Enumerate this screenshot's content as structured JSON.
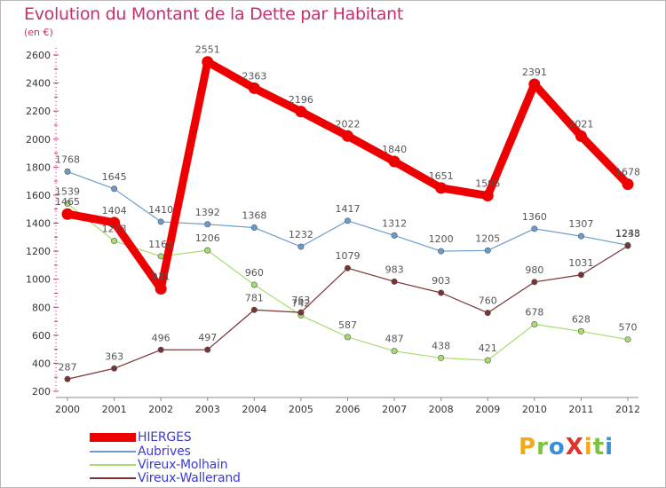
{
  "header": {
    "title": "Evolution du Montant de la Dette par Habitant",
    "unit": "(en €)"
  },
  "brand": {
    "text": "ProXiti",
    "letters": [
      {
        "ch": "P",
        "color": "#f2a81d"
      },
      {
        "ch": "r",
        "color": "#7cc142"
      },
      {
        "ch": "o",
        "color": "#3a8fd9"
      },
      {
        "ch": "X",
        "color": "#e4322b"
      },
      {
        "ch": "i",
        "color": "#f2a81d"
      },
      {
        "ch": "t",
        "color": "#7cc142"
      },
      {
        "ch": "i",
        "color": "#3a8fd9"
      }
    ]
  },
  "chart_data": {
    "type": "line",
    "title": "Evolution du Montant de la Dette par Habitant",
    "ylabel": "(en €)",
    "xlabel": "",
    "x": [
      2000,
      2001,
      2002,
      2003,
      2004,
      2005,
      2006,
      2007,
      2008,
      2009,
      2010,
      2011,
      2012
    ],
    "ylim": [
      200,
      2600
    ],
    "yticks": [
      200,
      400,
      600,
      800,
      1000,
      1200,
      1400,
      1600,
      1800,
      2000,
      2200,
      2400,
      2600
    ],
    "grid": false,
    "legend_position": "bottom-left",
    "series": [
      {
        "name": "HIERGES",
        "color": "#ee0000",
        "values": [
          1465,
          1404,
          931,
          2551,
          2363,
          2196,
          2022,
          1840,
          1651,
          1596,
          2391,
          2021,
          1678
        ]
      },
      {
        "name": "Aubrives",
        "color": "#6b9bcc",
        "values": [
          1768,
          1645,
          1410,
          1392,
          1368,
          1232,
          1417,
          1312,
          1200,
          1205,
          1360,
          1307,
          1243
        ]
      },
      {
        "name": "Vireux-Molhain",
        "color": "#a8dc70",
        "values": [
          1539,
          1273,
          1163,
          1206,
          960,
          742,
          587,
          487,
          438,
          421,
          678,
          628,
          570
        ]
      },
      {
        "name": "Vireux-Wallerand",
        "color": "#7a3333",
        "values": [
          287,
          363,
          496,
          497,
          781,
          763,
          1079,
          983,
          903,
          760,
          980,
          1031,
          1238
        ]
      }
    ]
  }
}
